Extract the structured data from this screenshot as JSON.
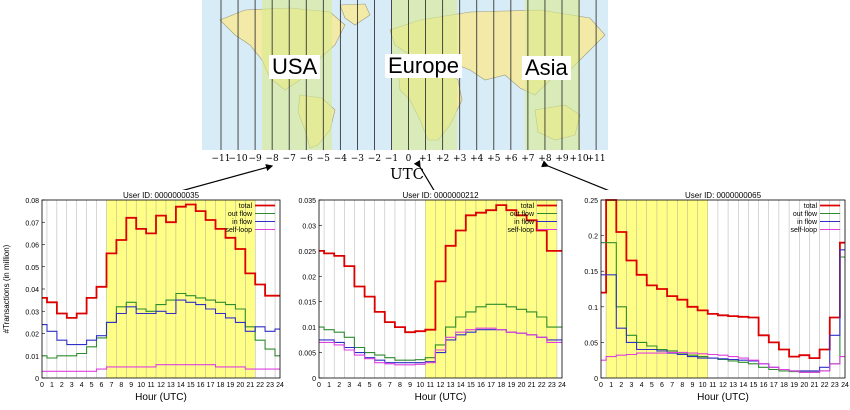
{
  "map": {
    "regions": [
      {
        "key": "usa",
        "label": "USA"
      },
      {
        "key": "europe",
        "label": "Europe"
      },
      {
        "key": "asia",
        "label": "Asia"
      }
    ],
    "tz_labels": [
      "−11",
      "−10",
      "−9",
      "−8",
      "−7",
      "−6",
      "−5",
      "−4",
      "−3",
      "−2",
      "−1",
      "0",
      "+1",
      "+2",
      "+3",
      "+4",
      "+5",
      "+6",
      "+7",
      "+8",
      "+9",
      "+10",
      "+11"
    ],
    "utc_label": "UTC",
    "colors": {
      "ocean": "#d8ecf7",
      "land": "#f3eaa8",
      "highlight": "#d9eb8f",
      "line": "#222222",
      "arrow": "#000000"
    }
  },
  "colors": {
    "total": "#dd0000",
    "out_flow": "#2e8b2e",
    "in_flow": "#3030c8",
    "self_loop": "#e040e0",
    "highlight": "#ffff88"
  },
  "chart_data": [
    {
      "type": "line",
      "title": "User ID: 0000000035",
      "xlabel": "Hour (UTC)",
      "ylabel": "#Transactions (in million)",
      "x": [
        0,
        1,
        2,
        3,
        4,
        5,
        6,
        7,
        8,
        9,
        10,
        11,
        12,
        13,
        14,
        15,
        16,
        17,
        18,
        19,
        20,
        21,
        22,
        23,
        24
      ],
      "xlim": [
        0,
        24
      ],
      "ylim": [
        0,
        0.08
      ],
      "yticks": [
        0,
        0.01,
        0.02,
        0.03,
        0.04,
        0.05,
        0.06,
        0.07,
        0.08
      ],
      "ytick_labels": [
        "0",
        "0.01",
        "0.02",
        "0.03",
        "0.04",
        "0.05",
        "0.06",
        "0.07",
        "0.08"
      ],
      "highlight_range": [
        7,
        21
      ],
      "legend_position": "top-right",
      "series": [
        {
          "name": "total",
          "color_key": "total",
          "values": [
            0.036,
            0.034,
            0.029,
            0.027,
            0.029,
            0.036,
            0.041,
            0.056,
            0.062,
            0.072,
            0.067,
            0.065,
            0.073,
            0.07,
            0.077,
            0.078,
            0.075,
            0.071,
            0.067,
            0.063,
            0.058,
            0.047,
            0.042,
            0.037,
            0.037
          ]
        },
        {
          "name": "out flow",
          "color_key": "out_flow",
          "values": [
            0.01,
            0.009,
            0.01,
            0.01,
            0.011,
            0.014,
            0.018,
            0.025,
            0.032,
            0.034,
            0.031,
            0.03,
            0.033,
            0.035,
            0.038,
            0.037,
            0.036,
            0.035,
            0.034,
            0.033,
            0.031,
            0.023,
            0.017,
            0.013,
            0.01
          ]
        },
        {
          "name": "in flow",
          "color_key": "in_flow",
          "values": [
            0.024,
            0.021,
            0.017,
            0.015,
            0.015,
            0.017,
            0.019,
            0.025,
            0.029,
            0.032,
            0.029,
            0.029,
            0.03,
            0.029,
            0.035,
            0.034,
            0.033,
            0.031,
            0.029,
            0.027,
            0.025,
            0.021,
            0.023,
            0.021,
            0.022
          ]
        },
        {
          "name": "self-loop",
          "color_key": "self_loop",
          "values": [
            0.003,
            0.003,
            0.003,
            0.003,
            0.003,
            0.003,
            0.004,
            0.005,
            0.005,
            0.005,
            0.005,
            0.005,
            0.006,
            0.006,
            0.006,
            0.006,
            0.006,
            0.006,
            0.005,
            0.005,
            0.005,
            0.004,
            0.004,
            0.004,
            0.004
          ]
        }
      ]
    },
    {
      "type": "line",
      "title": "User ID: 0000000212",
      "xlabel": "Hour (UTC)",
      "ylabel": "",
      "x": [
        0,
        1,
        2,
        3,
        4,
        5,
        6,
        7,
        8,
        9,
        10,
        11,
        12,
        13,
        14,
        15,
        16,
        17,
        18,
        19,
        20,
        21,
        22,
        23,
        24
      ],
      "xlim": [
        0,
        24
      ],
      "ylim": [
        0,
        0.035
      ],
      "yticks": [
        0,
        0.005,
        0.01,
        0.015,
        0.02,
        0.025,
        0.03,
        0.035
      ],
      "ytick_labels": [
        "0",
        "0.005",
        "0.01",
        "0.015",
        "0.02",
        "0.025",
        "0.03",
        "0.035"
      ],
      "highlight_range": [
        11,
        23
      ],
      "legend_position": "top-right",
      "series": [
        {
          "name": "total",
          "color_key": "total",
          "values": [
            0.025,
            0.0245,
            0.024,
            0.022,
            0.018,
            0.016,
            0.013,
            0.011,
            0.01,
            0.009,
            0.0092,
            0.0095,
            0.019,
            0.026,
            0.029,
            0.032,
            0.0325,
            0.033,
            0.034,
            0.033,
            0.032,
            0.031,
            0.029,
            0.025,
            0.025
          ]
        },
        {
          "name": "out flow",
          "color_key": "out_flow",
          "values": [
            0.01,
            0.0095,
            0.009,
            0.008,
            0.006,
            0.005,
            0.0045,
            0.004,
            0.0035,
            0.0035,
            0.0036,
            0.004,
            0.0065,
            0.01,
            0.012,
            0.013,
            0.014,
            0.0145,
            0.0145,
            0.014,
            0.0135,
            0.013,
            0.012,
            0.01,
            0.01
          ]
        },
        {
          "name": "in flow",
          "color_key": "in_flow",
          "values": [
            0.0075,
            0.0075,
            0.007,
            0.006,
            0.005,
            0.004,
            0.0035,
            0.003,
            0.003,
            0.003,
            0.003,
            0.0032,
            0.005,
            0.0075,
            0.0085,
            0.009,
            0.0095,
            0.0095,
            0.0095,
            0.009,
            0.0088,
            0.0085,
            0.008,
            0.0075,
            0.0075
          ]
        },
        {
          "name": "self-loop",
          "color_key": "self_loop",
          "values": [
            0.007,
            0.007,
            0.0065,
            0.0055,
            0.0045,
            0.0038,
            0.003,
            0.0028,
            0.0026,
            0.0026,
            0.0027,
            0.003,
            0.0055,
            0.008,
            0.009,
            0.0095,
            0.0098,
            0.0098,
            0.0095,
            0.009,
            0.0088,
            0.0085,
            0.008,
            0.007,
            0.007
          ]
        }
      ]
    },
    {
      "type": "line",
      "title": "User ID: 0000000065",
      "xlabel": "Hour (UTC)",
      "ylabel": "",
      "x": [
        0,
        1,
        2,
        3,
        4,
        5,
        6,
        7,
        8,
        9,
        10,
        11,
        12,
        13,
        14,
        15,
        16,
        17,
        18,
        19,
        20,
        21,
        22,
        23,
        24
      ],
      "xlim": [
        0,
        24
      ],
      "ylim": [
        0,
        0.25
      ],
      "yticks": [
        0,
        0.05,
        0.1,
        0.15,
        0.2,
        0.25
      ],
      "ytick_labels": [
        "0",
        "0.05",
        "0.1",
        "0.15",
        "0.2",
        "0.25"
      ],
      "highlight_range": [
        1,
        10
      ],
      "legend_position": "top-right",
      "series": [
        {
          "name": "total",
          "color_key": "total",
          "values": [
            0.12,
            0.25,
            0.205,
            0.165,
            0.145,
            0.13,
            0.125,
            0.115,
            0.11,
            0.1,
            0.095,
            0.09,
            0.088,
            0.087,
            0.086,
            0.085,
            0.06,
            0.05,
            0.04,
            0.03,
            0.032,
            0.028,
            0.04,
            0.085,
            0.19
          ]
        },
        {
          "name": "out flow",
          "color_key": "out_flow",
          "values": [
            0.19,
            0.19,
            0.1,
            0.06,
            0.05,
            0.045,
            0.04,
            0.038,
            0.035,
            0.032,
            0.03,
            0.028,
            0.026,
            0.024,
            0.022,
            0.02,
            0.015,
            0.012,
            0.01,
            0.009,
            0.008,
            0.008,
            0.01,
            0.02,
            0.17
          ]
        },
        {
          "name": "in flow",
          "color_key": "in_flow",
          "values": [
            0.145,
            0.145,
            0.07,
            0.05,
            0.04,
            0.04,
            0.038,
            0.035,
            0.033,
            0.03,
            0.028,
            0.028,
            0.027,
            0.026,
            0.025,
            0.024,
            0.02,
            0.015,
            0.012,
            0.01,
            0.01,
            0.01,
            0.015,
            0.06,
            0.18
          ]
        },
        {
          "name": "self-loop",
          "color_key": "self_loop",
          "values": [
            0.025,
            0.03,
            0.032,
            0.033,
            0.035,
            0.035,
            0.035,
            0.036,
            0.036,
            0.035,
            0.034,
            0.033,
            0.032,
            0.03,
            0.028,
            0.025,
            0.02,
            0.015,
            0.012,
            0.01,
            0.008,
            0.008,
            0.01,
            0.02,
            0.03
          ]
        }
      ]
    }
  ]
}
